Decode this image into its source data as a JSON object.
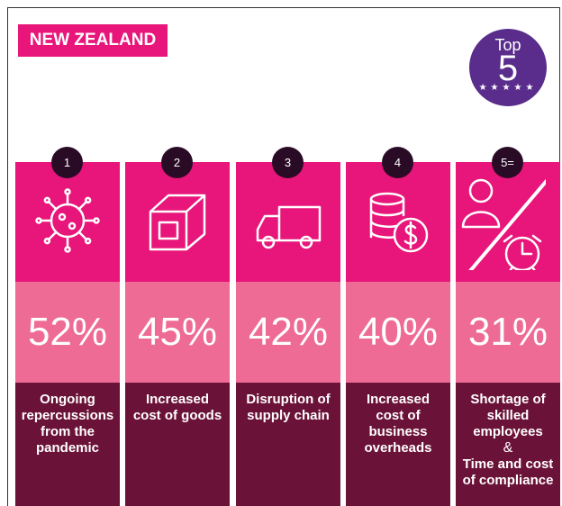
{
  "header": {
    "title": "NEW ZEALAND",
    "badge": {
      "top": "Top",
      "number": "5"
    }
  },
  "items": [
    {
      "rank": "1",
      "percent": "52%",
      "label": "Ongoing repercussions from the pandemic"
    },
    {
      "rank": "2",
      "percent": "45%",
      "label": "Increased cost of goods"
    },
    {
      "rank": "3",
      "percent": "42%",
      "label": "Disruption of supply chain"
    },
    {
      "rank": "4",
      "percent": "40%",
      "label": "Increased cost of business overheads"
    },
    {
      "rank": "5=",
      "percent": "31%",
      "label": "Shortage of skilled employees",
      "connector": "&",
      "label2": "Time and cost of compliance"
    }
  ]
}
